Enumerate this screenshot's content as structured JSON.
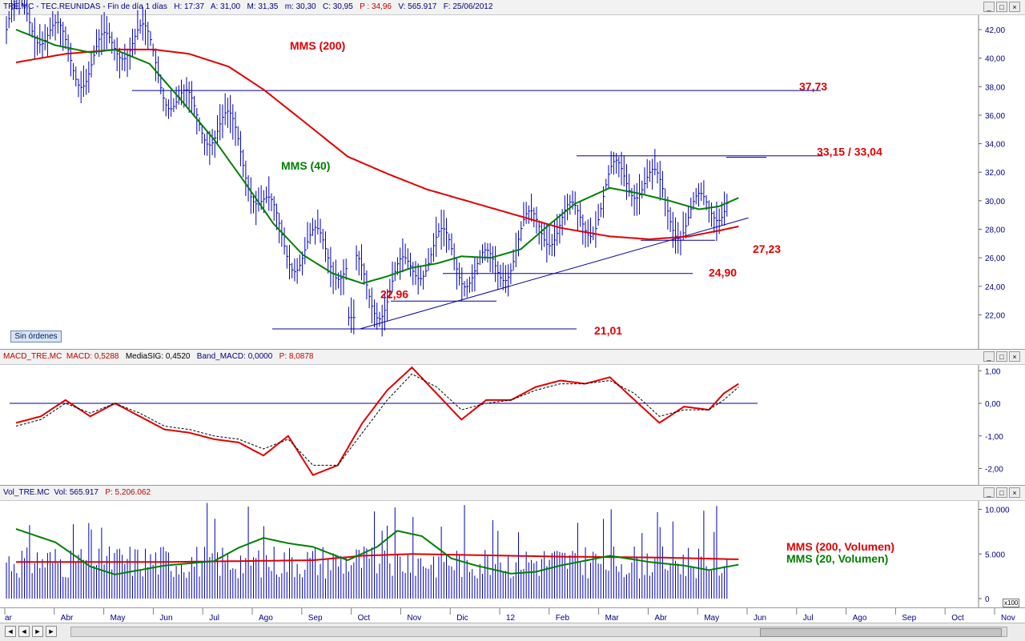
{
  "price_panel": {
    "header": {
      "symbol": "TRE.MC - TEC.REUNIDAS - Fin de día 1 días",
      "h": "H: 17:37",
      "a": "A: 31,00",
      "m": "M: 31,35",
      "mi": "m: 30,30",
      "c": "C: 30,95",
      "p": "P : 34,96",
      "v": "V: 565.917",
      "date": "F: 25/06/2012"
    },
    "sin_ordenes": "Sin órdenes"
  },
  "macd_panel": {
    "header": {
      "name": "MACD_TRE.MC",
      "macd": "MACD: 0,5288",
      "sig": "MediaSIG: 0,4520",
      "band": "Band_MACD: 0,0000",
      "p": "P: 8,0878"
    }
  },
  "vol_panel": {
    "header": {
      "name": "Vol_TRE.MC",
      "vol": "Vol: 565.917",
      "p": "P: 5.206.062"
    },
    "scale_badge": "x100"
  },
  "window_buttons": [
    "_",
    "□",
    "×"
  ],
  "nav_buttons": [
    "◄",
    "◄",
    "►",
    "►"
  ],
  "colors": {
    "bars": "#0000c0",
    "mms200": "#e00000",
    "mms40": "#008000",
    "lines": "#0000a0",
    "label": "#e00000",
    "green_label": "#008000"
  },
  "chart_data": [
    {
      "type": "line",
      "title": "",
      "xlabel": "",
      "ylabel": "",
      "x_ticks": [
        "ar",
        "Abr",
        "May",
        "Jun",
        "Jul",
        "Ago",
        "Sep",
        "Oct",
        "Nov",
        "Dic",
        "12",
        "Feb",
        "Mar",
        "Abr",
        "May",
        "Jun",
        "Jul",
        "Ago",
        "Sep",
        "Oct",
        "Nov"
      ],
      "y_ticks": [
        "42,00",
        "40,00",
        "38,00",
        "36,00",
        "34,00",
        "32,00",
        "30,00",
        "28,00",
        "26,00",
        "24,00",
        "22,00"
      ],
      "ylim": [
        20.8,
        42.7
      ],
      "series": [
        {
          "name": "MMS (200)",
          "color": "#e00000",
          "x_month": [
            0,
            1,
            2,
            2.8,
            3.5,
            4.3,
            5,
            5.8,
            6.7,
            7.5,
            8.3,
            9.2,
            10,
            11,
            12,
            12.8,
            13.6,
            14.2,
            14.6
          ],
          "values": [
            39.7,
            40.3,
            40.6,
            40.6,
            40.3,
            39.4,
            37.8,
            35.6,
            33.1,
            31.9,
            30.8,
            29.9,
            29.1,
            28.1,
            27.5,
            27.3,
            27.5,
            27.9,
            28.2
          ]
        },
        {
          "name": "MMS (40)",
          "color": "#008000",
          "x_month": [
            0,
            0.8,
            1.5,
            2,
            2.7,
            3.3,
            4,
            4.6,
            5.2,
            5.8,
            6.4,
            7,
            7.5,
            8,
            8.5,
            9,
            9.6,
            10.2,
            10.8,
            11.3,
            12,
            12.6,
            13.2,
            13.8,
            14.2,
            14.6
          ],
          "values": [
            42.0,
            40.9,
            40.4,
            40.6,
            39.6,
            37.2,
            34.3,
            31.4,
            28.4,
            26.2,
            24.9,
            24.2,
            24.7,
            25.3,
            25.6,
            26.1,
            26.0,
            26.6,
            28.4,
            29.8,
            30.9,
            30.5,
            30.0,
            29.4,
            29.6,
            30.2
          ]
        }
      ],
      "price_range": {
        "x_month_start": 0,
        "x_month_end": 14.6,
        "start": 41.0,
        "low_month": 6.95,
        "low": 21.01
      },
      "levels": [
        {
          "label": "37,73",
          "value": 37.73
        },
        {
          "label": "33,15 / 33,04",
          "value": 33.15
        },
        {
          "label": "27,23",
          "value": 27.23
        },
        {
          "label": "24,90",
          "value": 24.9
        },
        {
          "label": "22,96",
          "value": 22.96
        },
        {
          "label": "21,01",
          "value": 21.01
        }
      ],
      "trendline": {
        "from": {
          "x_month": 6.95,
          "y": 21.01
        },
        "to": {
          "x_month": 14.8,
          "y": 28.8
        }
      },
      "annotations": [
        {
          "text": "MMS (200)",
          "color": "#e00000"
        },
        {
          "text": "MMS (40)",
          "color": "#008000"
        }
      ]
    },
    {
      "type": "line",
      "title": "",
      "y_ticks": [
        "1,00",
        "0,00",
        "-1,00",
        "-2,00"
      ],
      "ylim": [
        -2.3,
        1.25
      ],
      "series": [
        {
          "name": "MACD",
          "color": "#e00000",
          "x_month": [
            0,
            0.5,
            1,
            1.5,
            2,
            2.5,
            3,
            3.5,
            4,
            4.5,
            5,
            5.5,
            6,
            6.5,
            7,
            7.5,
            8,
            8.5,
            9,
            9.5,
            10,
            10.5,
            11,
            11.5,
            12,
            12.5,
            13,
            13.5,
            14,
            14.3,
            14.6
          ],
          "values": [
            -0.6,
            -0.4,
            0.1,
            -0.4,
            0.0,
            -0.4,
            -0.8,
            -0.9,
            -1.1,
            -1.2,
            -1.6,
            -1.0,
            -2.2,
            -1.9,
            -0.6,
            0.4,
            1.1,
            0.3,
            -0.5,
            0.1,
            0.1,
            0.5,
            0.7,
            0.6,
            0.8,
            0.1,
            -0.6,
            -0.1,
            -0.2,
            0.3,
            0.6
          ]
        },
        {
          "name": "MediaSIG",
          "color": "#000000",
          "x_month": [
            0,
            0.5,
            1,
            1.5,
            2,
            2.5,
            3,
            3.5,
            4,
            4.5,
            5,
            5.5,
            6,
            6.5,
            7,
            7.5,
            8,
            8.5,
            9,
            9.5,
            10,
            10.5,
            11,
            11.5,
            12,
            12.5,
            13,
            13.5,
            14,
            14.3,
            14.6
          ],
          "values": [
            -0.7,
            -0.5,
            0.0,
            -0.3,
            0.0,
            -0.3,
            -0.7,
            -0.8,
            -1.0,
            -1.1,
            -1.4,
            -1.1,
            -1.9,
            -1.9,
            -0.9,
            0.1,
            0.9,
            0.5,
            -0.2,
            0.0,
            0.1,
            0.4,
            0.6,
            0.6,
            0.7,
            0.3,
            -0.4,
            -0.2,
            -0.2,
            0.1,
            0.5
          ]
        }
      ],
      "zero_line": 0.0
    },
    {
      "type": "bar",
      "title": "",
      "y_ticks": [
        "10.000",
        "5.000",
        "0"
      ],
      "ylim": [
        0,
        11500
      ],
      "series": [
        {
          "name": "MMS (200, Volumen)",
          "color": "#e00000",
          "x_month": [
            0,
            3,
            6,
            7,
            8,
            9,
            11,
            13,
            14.6
          ],
          "values": [
            4100,
            4100,
            4300,
            4800,
            5000,
            4900,
            4700,
            4600,
            4400
          ]
        },
        {
          "name": "MMS (20, Volumen)",
          "color": "#008000",
          "x_month": [
            0,
            0.8,
            1.5,
            2,
            3,
            4,
            4.5,
            5,
            5.5,
            6,
            6.7,
            7.3,
            7.7,
            8.2,
            8.8,
            9.3,
            10,
            10.5,
            11,
            12,
            12.8,
            13.5,
            14,
            14.6
          ],
          "values": [
            7800,
            6300,
            3600,
            2700,
            3700,
            4200,
            5700,
            6800,
            6200,
            5800,
            4300,
            5800,
            7600,
            7000,
            4500,
            3700,
            2800,
            3000,
            3700,
            4800,
            4100,
            3700,
            3200,
            3800
          ]
        }
      ],
      "bars": {
        "x_month_start": 0,
        "x_month_end": 14.6,
        "typical": 5000,
        "max": 11300
      }
    }
  ]
}
